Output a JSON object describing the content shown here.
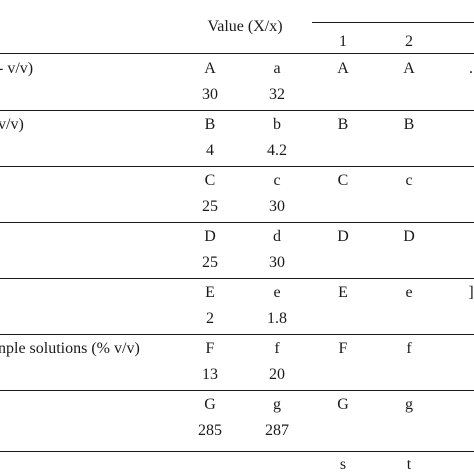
{
  "header": {
    "value_group": "Value (X/x)",
    "col1": "1",
    "col2": "2"
  },
  "rows": [
    {
      "label": "- v/v)",
      "a1": "A",
      "a2": "a",
      "b1": "A",
      "b2": "A",
      "n1": "30",
      "n2": "32",
      "edge": "."
    },
    {
      "label": "v/v)",
      "a1": "B",
      "a2": "b",
      "b1": "B",
      "b2": "B",
      "n1": "4",
      "n2": "4.2",
      "edge": ""
    },
    {
      "label": "",
      "a1": "C",
      "a2": "c",
      "b1": "C",
      "b2": "c",
      "n1": "25",
      "n2": "30",
      "edge": ""
    },
    {
      "label": "",
      "a1": "D",
      "a2": "d",
      "b1": "D",
      "b2": "D",
      "n1": "25",
      "n2": "30",
      "edge": ""
    },
    {
      "label": "",
      "a1": "E",
      "a2": "e",
      "b1": "E",
      "b2": "e",
      "n1": "2",
      "n2": "1.8",
      "edge": "]"
    },
    {
      "label": "nple solutions (% v/v)",
      "a1": "F",
      "a2": "f",
      "b1": "F",
      "b2": "f",
      "n1": "13",
      "n2": "20",
      "edge": ""
    },
    {
      "label": "",
      "a1": "G",
      "a2": "g",
      "b1": "G",
      "b2": "g",
      "n1": "285",
      "n2": "287",
      "edge": ""
    }
  ],
  "footer": {
    "s": "s",
    "t": "t"
  }
}
